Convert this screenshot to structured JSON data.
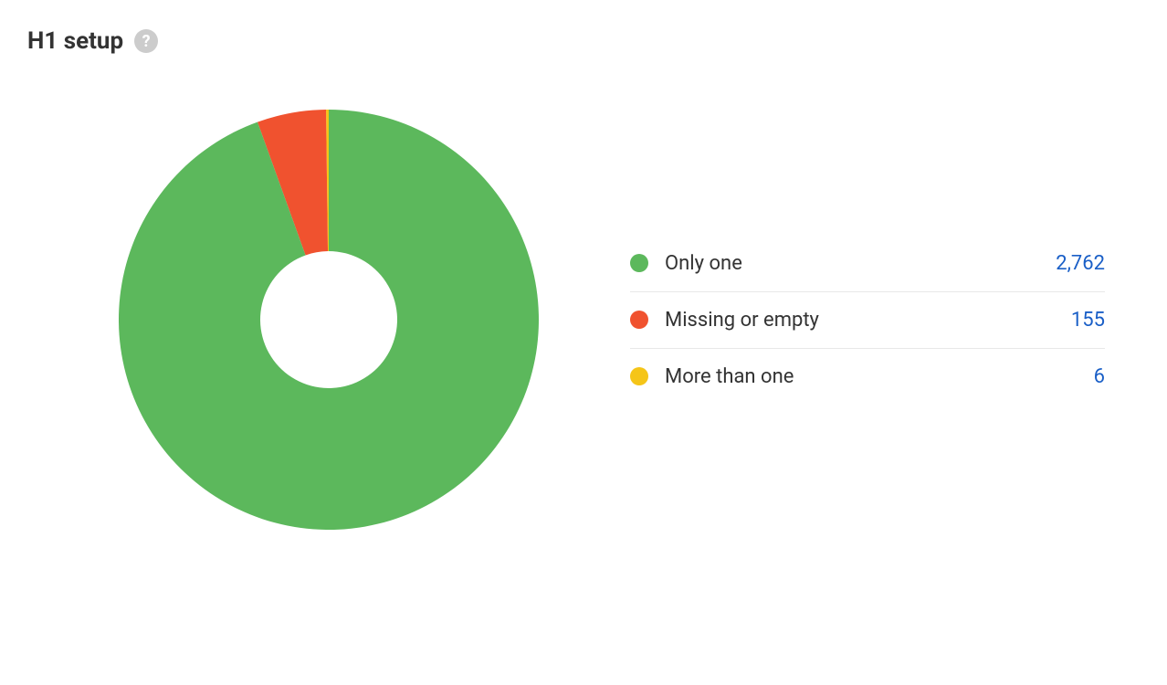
{
  "header": {
    "title": "H1 setup",
    "help_glyph": "?"
  },
  "chart": {
    "type": "donut",
    "background_color": "#ffffff",
    "outer_radius": 230,
    "inner_radius": 75,
    "start_angle_deg": -90,
    "series": [
      {
        "label": "Only one",
        "value": 2762,
        "display_value": "2,762",
        "color": "#5cb85c"
      },
      {
        "label": "Missing or empty",
        "value": 155,
        "display_value": "155",
        "color": "#f0522f"
      },
      {
        "label": "More than one",
        "value": 6,
        "display_value": "6",
        "color": "#f5c518"
      }
    ],
    "slice_order": [
      "More than one",
      "Missing or empty",
      "Only one"
    ]
  },
  "legend": {
    "label_color": "#333333",
    "value_color": "#1a5fc7",
    "divider_color": "#e8e8e8",
    "label_fontsize": 22,
    "value_fontsize": 22,
    "swatch_size": 20
  }
}
